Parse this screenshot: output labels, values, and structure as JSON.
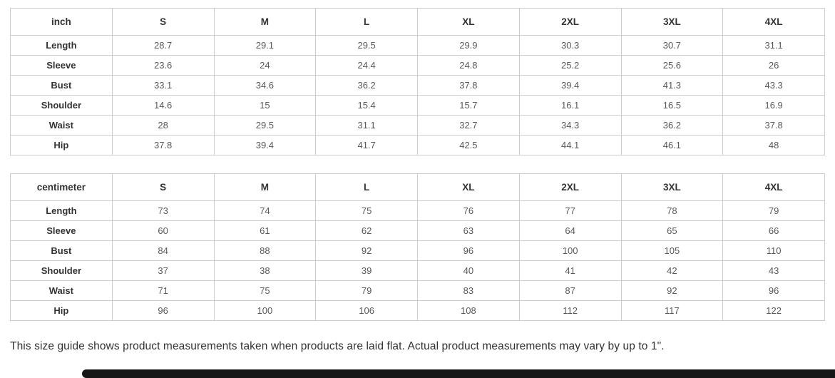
{
  "tables": [
    {
      "unit_label": "inch",
      "sizes": [
        "S",
        "M",
        "L",
        "XL",
        "2XL",
        "3XL",
        "4XL"
      ],
      "rows": [
        {
          "label": "Length",
          "values": [
            "28.7",
            "29.1",
            "29.5",
            "29.9",
            "30.3",
            "30.7",
            "31.1"
          ]
        },
        {
          "label": "Sleeve",
          "values": [
            "23.6",
            "24",
            "24.4",
            "24.8",
            "25.2",
            "25.6",
            "26"
          ]
        },
        {
          "label": "Bust",
          "values": [
            "33.1",
            "34.6",
            "36.2",
            "37.8",
            "39.4",
            "41.3",
            "43.3"
          ]
        },
        {
          "label": "Shoulder",
          "values": [
            "14.6",
            "15",
            "15.4",
            "15.7",
            "16.1",
            "16.5",
            "16.9"
          ]
        },
        {
          "label": "Waist",
          "values": [
            "28",
            "29.5",
            "31.1",
            "32.7",
            "34.3",
            "36.2",
            "37.8"
          ]
        },
        {
          "label": "Hip",
          "values": [
            "37.8",
            "39.4",
            "41.7",
            "42.5",
            "44.1",
            "46.1",
            "48"
          ]
        }
      ]
    },
    {
      "unit_label": "centimeter",
      "sizes": [
        "S",
        "M",
        "L",
        "XL",
        "2XL",
        "3XL",
        "4XL"
      ],
      "rows": [
        {
          "label": "Length",
          "values": [
            "73",
            "74",
            "75",
            "76",
            "77",
            "78",
            "79"
          ]
        },
        {
          "label": "Sleeve",
          "values": [
            "60",
            "61",
            "62",
            "63",
            "64",
            "65",
            "66"
          ]
        },
        {
          "label": "Bust",
          "values": [
            "84",
            "88",
            "92",
            "96",
            "100",
            "105",
            "110"
          ]
        },
        {
          "label": "Shoulder",
          "values": [
            "37",
            "38",
            "39",
            "40",
            "41",
            "42",
            "43"
          ]
        },
        {
          "label": "Waist",
          "values": [
            "71",
            "75",
            "79",
            "83",
            "87",
            "92",
            "96"
          ]
        },
        {
          "label": "Hip",
          "values": [
            "96",
            "100",
            "106",
            "108",
            "112",
            "117",
            "122"
          ]
        }
      ]
    }
  ],
  "note": "This size guide shows product measurements taken when products are laid flat. Actual product measurements may vary by up to 1\".",
  "colors": {
    "border": "#cccccc",
    "header_text": "#333333",
    "value_text": "#585858",
    "note_text": "#333333",
    "bottom_bar": "#161616"
  }
}
